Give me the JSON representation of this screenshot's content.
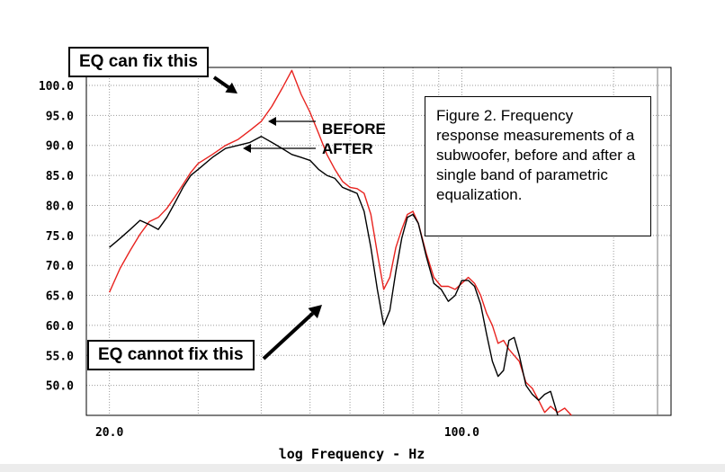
{
  "chart_data": {
    "type": "line",
    "x_scale": "log",
    "xlim": [
      18,
      260
    ],
    "ylim": [
      45,
      103
    ],
    "xlabel": "log Frequency - Hz",
    "ylabel": "",
    "x_ticks": [
      20.0,
      100.0
    ],
    "x_tick_labels": [
      "20.0",
      "100.0"
    ],
    "y_ticks": [
      50,
      55,
      60,
      65,
      70,
      75,
      80,
      85,
      90,
      95,
      100
    ],
    "y_tick_labels": [
      "50.0",
      "55.0",
      "60.0",
      "65.0",
      "70.0",
      "75.0",
      "80.0",
      "85.0",
      "90.0",
      "95.0",
      "100.0"
    ],
    "grid": true,
    "series": [
      {
        "name": "BEFORE",
        "color": "#e8231f",
        "x": [
          20,
          21,
          22,
          23,
          24,
          25,
          26,
          27,
          28,
          29,
          30,
          32,
          34,
          36,
          38,
          40,
          42,
          44,
          46,
          48,
          50,
          52,
          54,
          56,
          58,
          60,
          62,
          64,
          66,
          68,
          70,
          72,
          74,
          76,
          78,
          80,
          82,
          85,
          88,
          91,
          94,
          97,
          100,
          103,
          106,
          109,
          112,
          115,
          118,
          121,
          124,
          127,
          130,
          134,
          138,
          142,
          146,
          150,
          155,
          160,
          165
        ],
        "y": [
          65.5,
          69.5,
          72.5,
          75.2,
          77.3,
          78.0,
          79.5,
          81.5,
          83.5,
          85.5,
          87.0,
          88.5,
          90.0,
          91.0,
          92.5,
          94.0,
          96.5,
          99.5,
          102.5,
          98.5,
          95.5,
          92.0,
          88.5,
          86.0,
          84.0,
          83.0,
          82.8,
          82.0,
          78.5,
          72.0,
          66.0,
          68.0,
          73.0,
          76.0,
          78.5,
          79.0,
          77.0,
          72.0,
          68.0,
          66.5,
          66.5,
          66.0,
          67.0,
          68.0,
          67.0,
          65.0,
          62.0,
          60.0,
          57.0,
          57.5,
          56.0,
          55.0,
          54.0,
          50.5,
          49.5,
          47.5,
          45.5,
          46.5,
          45.5,
          46.2,
          45.0
        ]
      },
      {
        "name": "AFTER",
        "color": "#000000",
        "x": [
          20,
          21,
          22,
          23,
          24,
          25,
          26,
          27,
          28,
          29,
          30,
          32,
          34,
          36,
          38,
          40,
          42,
          44,
          46,
          48,
          50,
          52,
          54,
          56,
          58,
          60,
          62,
          64,
          66,
          68,
          70,
          72,
          74,
          76,
          78,
          80,
          82,
          85,
          88,
          91,
          94,
          97,
          100,
          103,
          106,
          109,
          112,
          115,
          118,
          121,
          124,
          127,
          130,
          134,
          138,
          142,
          146,
          150,
          155
        ],
        "y": [
          73.0,
          74.5,
          76.0,
          77.5,
          76.8,
          76.0,
          78.0,
          80.5,
          83.0,
          85.0,
          86.0,
          88.0,
          89.5,
          90.0,
          90.5,
          91.5,
          90.5,
          89.5,
          88.5,
          88.0,
          87.5,
          86.0,
          85.0,
          84.5,
          83.0,
          82.5,
          82.0,
          79.0,
          73.0,
          66.0,
          60.0,
          62.5,
          69.0,
          74.5,
          78.0,
          78.5,
          77.0,
          71.5,
          67.0,
          66.0,
          64.0,
          65.0,
          67.5,
          67.5,
          66.5,
          63.5,
          58.5,
          54.0,
          51.5,
          52.5,
          57.5,
          58.0,
          55.0,
          50.0,
          48.5,
          47.5,
          48.5,
          49.0,
          45.0
        ]
      }
    ],
    "annotations": {
      "eq_can_fix": "EQ can fix this",
      "eq_cannot_fix": "EQ cannot fix this",
      "before_label": "BEFORE",
      "after_label": "AFTER",
      "caption": "Figure 2. Frequency response measurements of a subwoofer, before and after a single band of parametric equalization."
    }
  }
}
